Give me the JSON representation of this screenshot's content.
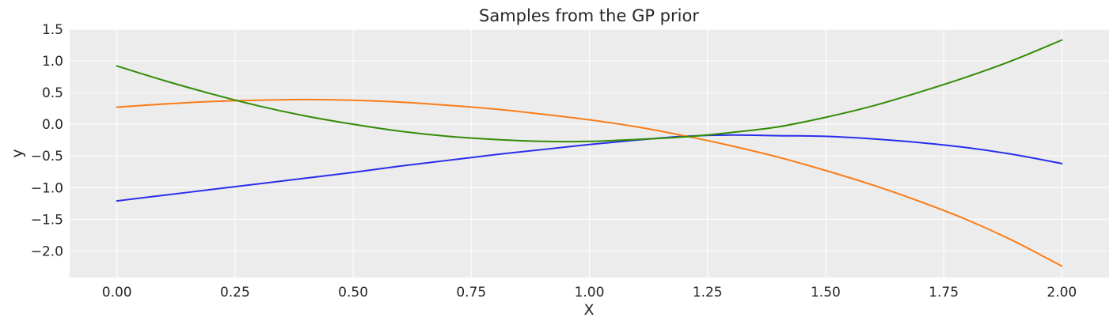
{
  "chart_data": {
    "type": "line",
    "title": "Samples from the GP prior",
    "xlabel": "X",
    "ylabel": "y",
    "xlim": [
      -0.1,
      2.1
    ],
    "ylim": [
      -2.42,
      1.5
    ],
    "x_ticks": [
      0.0,
      0.25,
      0.5,
      0.75,
      1.0,
      1.25,
      1.5,
      1.75,
      2.0
    ],
    "x_tick_labels": [
      "0.00",
      "0.25",
      "0.50",
      "0.75",
      "1.00",
      "1.25",
      "1.50",
      "1.75",
      "2.00"
    ],
    "y_ticks": [
      1.5,
      1.0,
      0.5,
      0.0,
      -0.5,
      -1.0,
      -1.5,
      -2.0
    ],
    "y_tick_labels": [
      "1.5",
      "1.0",
      "0.5",
      "0.0",
      "−0.5",
      "−1.0",
      "−1.5",
      "−2.0"
    ],
    "grid": true,
    "background": "#ececec",
    "x": [
      0.0,
      0.1,
      0.2,
      0.3,
      0.4,
      0.5,
      0.6,
      0.7,
      0.8,
      0.9,
      1.0,
      1.1,
      1.2,
      1.3,
      1.4,
      1.5,
      1.6,
      1.7,
      1.8,
      1.9,
      2.0
    ],
    "series": [
      {
        "color": "#2a2eec",
        "values": [
          -1.21,
          -1.12,
          -1.03,
          -0.94,
          -0.85,
          -0.76,
          -0.66,
          -0.57,
          -0.48,
          -0.4,
          -0.32,
          -0.25,
          -0.19,
          -0.17,
          -0.18,
          -0.19,
          -0.23,
          -0.29,
          -0.37,
          -0.48,
          -0.62
        ]
      },
      {
        "color": "#fa7c17",
        "values": [
          0.27,
          0.32,
          0.36,
          0.38,
          0.39,
          0.38,
          0.35,
          0.3,
          0.24,
          0.16,
          0.07,
          -0.04,
          -0.18,
          -0.34,
          -0.52,
          -0.73,
          -0.96,
          -1.22,
          -1.51,
          -1.85,
          -2.24
        ]
      },
      {
        "color": "#328c06",
        "values": [
          0.92,
          0.69,
          0.48,
          0.29,
          0.13,
          0.0,
          -0.11,
          -0.19,
          -0.24,
          -0.27,
          -0.27,
          -0.24,
          -0.2,
          -0.13,
          -0.04,
          0.11,
          0.29,
          0.51,
          0.75,
          1.02,
          1.33
        ]
      }
    ]
  }
}
